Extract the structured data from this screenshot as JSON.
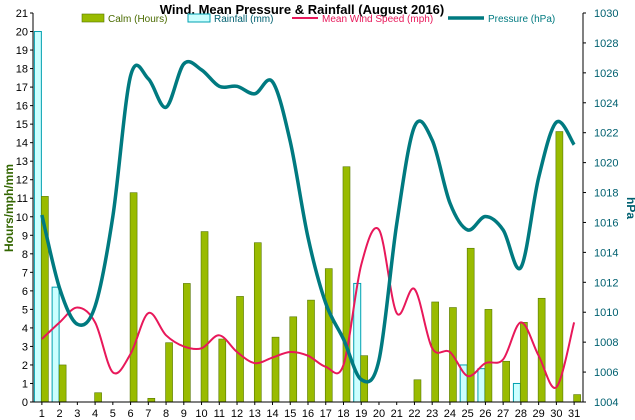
{
  "chart_data": {
    "type": "bar",
    "title": "Wind, Mean Pressure & Rainfall (August 2016)",
    "ylabel_left": "Hours/mph/mm",
    "ylabel_right": "hPa",
    "ylim_left": [
      0,
      21
    ],
    "ylim_right": [
      1004,
      1030
    ],
    "yticks_left": [
      0,
      1,
      2,
      3,
      4,
      5,
      6,
      7,
      8,
      9,
      10,
      11,
      12,
      13,
      14,
      15,
      16,
      17,
      18,
      19,
      20,
      21
    ],
    "yticks_right": [
      1004,
      1006,
      1008,
      1010,
      1012,
      1014,
      1016,
      1018,
      1020,
      1022,
      1024,
      1026,
      1028,
      1030
    ],
    "categories": [
      "1",
      "2",
      "3",
      "4",
      "5",
      "6",
      "7",
      "8",
      "9",
      "10",
      "11",
      "12",
      "13",
      "14",
      "15",
      "16",
      "17",
      "18",
      "19",
      "20",
      "21",
      "22",
      "23",
      "24",
      "25",
      "26",
      "27",
      "28",
      "29",
      "30",
      "31"
    ],
    "grid": false,
    "legend_position": "top",
    "series": [
      {
        "name": "Calm (Hours)",
        "type": "bar",
        "axis": "left",
        "color": "#99bb00",
        "values": [
          11.1,
          2.0,
          0,
          0.5,
          0,
          11.3,
          0.2,
          3.2,
          6.4,
          9.2,
          3.4,
          5.7,
          8.6,
          3.5,
          4.6,
          5.5,
          7.2,
          12.7,
          2.5,
          0,
          0,
          1.2,
          5.4,
          5.1,
          8.3,
          5.0,
          2.2,
          4.3,
          5.6,
          14.6,
          0.4
        ]
      },
      {
        "name": "Rainfall (mm)",
        "type": "bar",
        "axis": "left",
        "color": "#ccffff",
        "stroke": "#00a0b0",
        "values": [
          20.0,
          6.2,
          0,
          0,
          0,
          0,
          0,
          0,
          0,
          0,
          0,
          0,
          0,
          0,
          0,
          0,
          0,
          0,
          6.4,
          0,
          0,
          0,
          0,
          0,
          2.0,
          1.8,
          0,
          1.0,
          0,
          0,
          0
        ]
      },
      {
        "name": "Mean Wind Speed (mph)",
        "type": "line",
        "axis": "left",
        "color": "#e8185a",
        "values": [
          3.4,
          4.3,
          5.1,
          4.3,
          1.6,
          2.6,
          4.8,
          3.6,
          3.0,
          2.9,
          3.6,
          2.7,
          2.1,
          2.4,
          2.7,
          2.5,
          1.9,
          2.0,
          7.4,
          9.3,
          4.8,
          6.1,
          2.9,
          2.7,
          1.4,
          2.1,
          2.3,
          4.3,
          2.5,
          0.8,
          4.3
        ]
      },
      {
        "name": "Pressure (hPa)",
        "type": "line",
        "axis": "right",
        "color": "#007a80",
        "values": [
          1016.5,
          1011.6,
          1009.2,
          1010.4,
          1016.4,
          1025.8,
          1025.6,
          1023.7,
          1026.6,
          1026.2,
          1025.1,
          1025.1,
          1024.6,
          1025.4,
          1021.4,
          1015.0,
          1010.6,
          1008.2,
          1005.5,
          1006.8,
          1015.9,
          1022.4,
          1021.5,
          1017.3,
          1015.5,
          1016.4,
          1015.5,
          1013.0,
          1019.0,
          1022.7,
          1021.2
        ]
      }
    ]
  }
}
